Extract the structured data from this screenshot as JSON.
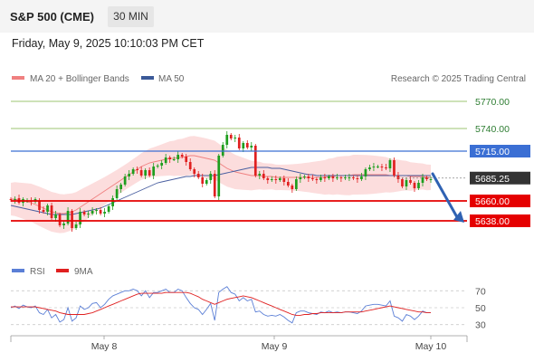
{
  "header": {
    "title": "S&P 500 (CME)",
    "interval": "30 MIN"
  },
  "datetime": "Friday, May 9, 2025 10:10:03 PM CET",
  "credit": "Research © 2025 Trading Central",
  "colors": {
    "up_candle": "#1e9e1e",
    "down_candle": "#e02020",
    "bollinger_fill": "#fcd7d7",
    "ma20_line": "#f08080",
    "ma50_line": "#4a5fa0",
    "resistance_green": "#7cb342",
    "level_blue": "#3b6fd4",
    "support_red": "#e50000",
    "current_price": "#333333",
    "rsi_line": "#5b7fd6",
    "rsi_ma_line": "#e02020",
    "forecast_arrow": "#2f62b3"
  },
  "chart_data": [
    {
      "type": "candlestick",
      "legend": [
        {
          "name": "MA 20 + Bollinger Bands",
          "color": "#f08080"
        },
        {
          "name": "MA 50",
          "color": "#3b5998"
        }
      ],
      "x_tick_labels": [
        "May 8",
        "May 9",
        "May 10"
      ],
      "ylim": [
        5600,
        5790
      ],
      "levels": [
        {
          "value": 5770.0,
          "label": "5770.00",
          "style": "green"
        },
        {
          "value": 5740.0,
          "label": "5740.00",
          "style": "green"
        },
        {
          "value": 5715.0,
          "label": "5715.00",
          "style": "blue"
        },
        {
          "value": 5685.25,
          "label": "5685.25",
          "style": "current"
        },
        {
          "value": 5660.0,
          "label": "5660.00",
          "style": "red"
        },
        {
          "value": 5638.0,
          "label": "5638.00",
          "style": "red"
        }
      ],
      "forecast": {
        "from": 5690,
        "to": 5638,
        "direction": "down"
      },
      "close": [
        5661,
        5662,
        5658,
        5662,
        5660,
        5659,
        5662,
        5650,
        5648,
        5655,
        5641,
        5645,
        5633,
        5635,
        5649,
        5630,
        5634,
        5648,
        5645,
        5646,
        5649,
        5650,
        5646,
        5648,
        5654,
        5663,
        5673,
        5678,
        5687,
        5690,
        5695,
        5694,
        5688,
        5694,
        5688,
        5698,
        5699,
        5702,
        5708,
        5706,
        5706,
        5711,
        5709,
        5703,
        5695,
        5690,
        5686,
        5679,
        5683,
        5690,
        5665,
        5710,
        5722,
        5733,
        5729,
        5730,
        5718,
        5724,
        5719,
        5721,
        5688,
        5690,
        5685,
        5683,
        5684,
        5683,
        5685,
        5681,
        5677,
        5673,
        5684,
        5686,
        5687,
        5685,
        5684,
        5683,
        5686,
        5685,
        5687,
        5685,
        5686,
        5685,
        5686,
        5686,
        5685,
        5684,
        5687,
        5695,
        5697,
        5698,
        5698,
        5697,
        5696,
        5705,
        5688,
        5684,
        5676,
        5683,
        5680,
        5674,
        5680,
        5686,
        5684,
        5684
      ],
      "open": [
        5662,
        5661,
        5663,
        5658,
        5660,
        5660,
        5659,
        5660,
        5650,
        5648,
        5655,
        5641,
        5645,
        5633,
        5635,
        5649,
        5630,
        5634,
        5648,
        5645,
        5646,
        5649,
        5650,
        5646,
        5648,
        5654,
        5663,
        5673,
        5678,
        5687,
        5690,
        5695,
        5694,
        5688,
        5694,
        5688,
        5698,
        5699,
        5702,
        5708,
        5706,
        5706,
        5711,
        5709,
        5703,
        5695,
        5690,
        5686,
        5679,
        5683,
        5690,
        5665,
        5710,
        5722,
        5733,
        5729,
        5730,
        5718,
        5724,
        5719,
        5721,
        5688,
        5690,
        5685,
        5683,
        5684,
        5683,
        5685,
        5681,
        5677,
        5673,
        5684,
        5686,
        5687,
        5685,
        5684,
        5683,
        5686,
        5685,
        5687,
        5685,
        5686,
        5685,
        5686,
        5686,
        5685,
        5684,
        5687,
        5695,
        5697,
        5698,
        5698,
        5697,
        5696,
        5705,
        5688,
        5684,
        5676,
        5683,
        5680,
        5674,
        5680,
        5686,
        5684
      ],
      "ma20": [
        5662,
        5662,
        5661,
        5660,
        5659,
        5658,
        5656,
        5654,
        5652,
        5650,
        5648,
        5647,
        5646,
        5646,
        5647,
        5648,
        5650,
        5653,
        5656,
        5659,
        5662,
        5665,
        5668,
        5671,
        5674,
        5677,
        5680,
        5683,
        5686,
        5689,
        5692,
        5695,
        5698,
        5700,
        5702,
        5703,
        5704,
        5705,
        5706,
        5707,
        5707,
        5708,
        5708,
        5709,
        5710,
        5710,
        5709,
        5708,
        5707,
        5706,
        5705,
        5702,
        5699,
        5696,
        5694,
        5692,
        5691,
        5690,
        5689,
        5688,
        5688,
        5688,
        5687,
        5687,
        5687,
        5686,
        5686,
        5686,
        5686,
        5686,
        5686,
        5686,
        5686,
        5686,
        5686,
        5686,
        5686,
        5686,
        5687,
        5687,
        5688,
        5688,
        5688,
        5688,
        5689,
        5689,
        5689,
        5689,
        5689,
        5689,
        5689,
        5689,
        5689,
        5688,
        5688,
        5688,
        5688,
        5688,
        5687,
        5687,
        5687,
        5687,
        5686,
        5686
      ],
      "ma50": [
        5655,
        5654,
        5653,
        5652,
        5651,
        5650,
        5649,
        5648,
        5647,
        5646,
        5645,
        5645,
        5645,
        5645,
        5645,
        5645,
        5646,
        5647,
        5648,
        5649,
        5650,
        5651,
        5652,
        5654,
        5656,
        5658,
        5660,
        5662,
        5664,
        5666,
        5668,
        5670,
        5672,
        5674,
        5676,
        5678,
        5680,
        5681,
        5682,
        5683,
        5684,
        5685,
        5686,
        5687,
        5687,
        5688,
        5688,
        5688,
        5688,
        5688,
        5688,
        5689,
        5690,
        5691,
        5692,
        5693,
        5694,
        5695,
        5696,
        5697,
        5697,
        5697,
        5697,
        5697,
        5696,
        5696,
        5696,
        5695,
        5694,
        5693,
        5692,
        5691,
        5690,
        5689,
        5689,
        5688,
        5688,
        5688,
        5688,
        5688,
        5688,
        5688,
        5688,
        5688,
        5688,
        5688,
        5688,
        5688,
        5688,
        5688,
        5688,
        5688,
        5688,
        5688,
        5688,
        5688,
        5688,
        5688,
        5688,
        5688,
        5688,
        5688,
        5688,
        5688
      ]
    },
    {
      "type": "line",
      "legend": [
        {
          "name": "RSI",
          "color": "#5b7fd6"
        },
        {
          "name": "9MA",
          "color": "#e02020"
        }
      ],
      "ylim": [
        20,
        80
      ],
      "y_ticks": [
        "70",
        "50",
        "30"
      ],
      "rsi": [
        50,
        52,
        49,
        53,
        51,
        50,
        52,
        44,
        42,
        48,
        38,
        42,
        33,
        36,
        50,
        34,
        38,
        52,
        48,
        50,
        55,
        56,
        50,
        54,
        60,
        64,
        66,
        68,
        70,
        70,
        72,
        70,
        64,
        70,
        62,
        68,
        68,
        70,
        72,
        68,
        68,
        72,
        70,
        62,
        55,
        50,
        48,
        42,
        48,
        55,
        35,
        68,
        72,
        75,
        68,
        66,
        58,
        62,
        58,
        60,
        45,
        46,
        42,
        40,
        41,
        40,
        42,
        39,
        35,
        32,
        44,
        46,
        46,
        44,
        43,
        42,
        45,
        44,
        46,
        44,
        45,
        44,
        45,
        45,
        44,
        43,
        46,
        52,
        53,
        54,
        54,
        53,
        52,
        58,
        40,
        38,
        34,
        42,
        40,
        36,
        40,
        46,
        44,
        44
      ],
      "rsi_ma": [
        51,
        51,
        51,
        51,
        51,
        51,
        51,
        50,
        49,
        48,
        47,
        46,
        44,
        43,
        42,
        42,
        42,
        42,
        42,
        43,
        44,
        46,
        48,
        50,
        52,
        54,
        56,
        58,
        60,
        62,
        64,
        66,
        67,
        67,
        67,
        67,
        67,
        67,
        68,
        68,
        68,
        68,
        68,
        68,
        67,
        65,
        63,
        60,
        58,
        56,
        54,
        56,
        58,
        60,
        61,
        62,
        63,
        64,
        63,
        62,
        60,
        58,
        56,
        54,
        52,
        50,
        48,
        46,
        44,
        42,
        41,
        41,
        42,
        42,
        43,
        43,
        44,
        44,
        44,
        44,
        44,
        44,
        45,
        45,
        45,
        45,
        45,
        46,
        47,
        48,
        49,
        50,
        51,
        52,
        51,
        50,
        49,
        48,
        47,
        46,
        45,
        45,
        44,
        44
      ]
    }
  ]
}
